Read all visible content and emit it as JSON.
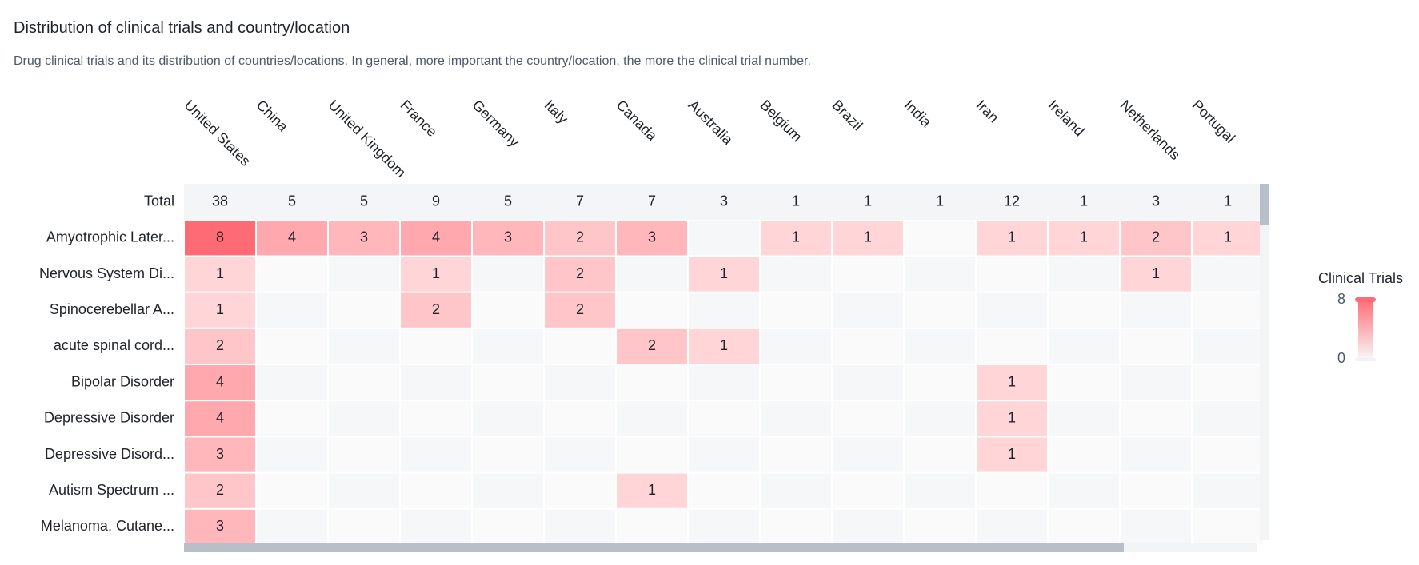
{
  "title": "Distribution of clinical trials and country/location",
  "subtitle": "Drug clinical trials and its distribution of countries/locations. In general, more important the country/location, the more the clinical trial number.",
  "legend": {
    "title": "Clinical Trials",
    "max_label": "8",
    "min_label": "0"
  },
  "colors": {
    "high": "#ff6b75",
    "low": "#f7f8fa",
    "total_row": "#f4f5f7",
    "text": "#1f2329"
  },
  "chart_data": {
    "type": "heatmap",
    "columns": [
      "United States",
      "China",
      "United Kingdom",
      "France",
      "Germany",
      "Italy",
      "Canada",
      "Australia",
      "Belgium",
      "Brazil",
      "India",
      "Iran",
      "Ireland",
      "Netherlands",
      "Portugal"
    ],
    "total_label": "Total",
    "totals": [
      38,
      5,
      5,
      9,
      5,
      7,
      7,
      3,
      1,
      1,
      1,
      12,
      1,
      3,
      1
    ],
    "rows": [
      {
        "label": "Amyotrophic Later...",
        "values": [
          8,
          4,
          3,
          4,
          3,
          2,
          3,
          null,
          1,
          1,
          null,
          1,
          1,
          2,
          1
        ]
      },
      {
        "label": "Nervous System Di...",
        "values": [
          1,
          null,
          null,
          1,
          null,
          2,
          null,
          1,
          null,
          null,
          null,
          null,
          null,
          1,
          null
        ]
      },
      {
        "label": "Spinocerebellar A...",
        "values": [
          1,
          null,
          null,
          2,
          null,
          2,
          null,
          null,
          null,
          null,
          null,
          null,
          null,
          null,
          null
        ]
      },
      {
        "label": "acute spinal cord...",
        "values": [
          2,
          null,
          null,
          null,
          null,
          null,
          2,
          1,
          null,
          null,
          null,
          null,
          null,
          null,
          null
        ]
      },
      {
        "label": "Bipolar Disorder",
        "values": [
          4,
          null,
          null,
          null,
          null,
          null,
          null,
          null,
          null,
          null,
          null,
          1,
          null,
          null,
          null
        ]
      },
      {
        "label": "Depressive Disorder",
        "values": [
          4,
          null,
          null,
          null,
          null,
          null,
          null,
          null,
          null,
          null,
          null,
          1,
          null,
          null,
          null
        ]
      },
      {
        "label": "Depressive Disord...",
        "values": [
          3,
          null,
          null,
          null,
          null,
          null,
          null,
          null,
          null,
          null,
          null,
          1,
          null,
          null,
          null
        ]
      },
      {
        "label": "Autism Spectrum ...",
        "values": [
          2,
          null,
          null,
          null,
          null,
          null,
          1,
          null,
          null,
          null,
          null,
          null,
          null,
          null,
          null
        ]
      },
      {
        "label": "Melanoma, Cutane...",
        "values": [
          3,
          null,
          null,
          null,
          null,
          null,
          null,
          null,
          null,
          null,
          null,
          null,
          null,
          null,
          null
        ]
      }
    ],
    "scale": [
      0,
      8
    ]
  }
}
